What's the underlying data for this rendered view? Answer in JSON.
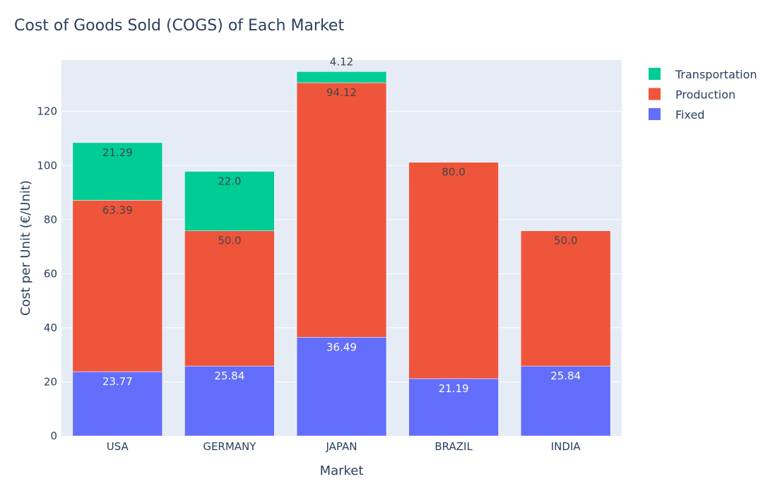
{
  "chart_data": {
    "type": "bar",
    "stacked": true,
    "title": "Cost of Goods Sold (COGS) of Each Market",
    "xlabel": "Market",
    "ylabel": "Cost per Unit (€/Unit)",
    "categories": [
      "USA",
      "GERMANY",
      "JAPAN",
      "BRAZIL",
      "INDIA"
    ],
    "ylim": [
      0,
      139
    ],
    "yticks": [
      0,
      20,
      40,
      60,
      80,
      100,
      120
    ],
    "grid": true,
    "legend_position": "top-right",
    "series": [
      {
        "name": "Fixed",
        "color": "#636efa",
        "label_color": "#ffffff",
        "values": [
          23.77,
          25.84,
          36.49,
          21.19,
          25.84
        ],
        "labels": [
          "23.77",
          "25.84",
          "36.49",
          "21.19",
          "25.84"
        ]
      },
      {
        "name": "Production",
        "color": "#ef553b",
        "label_color": "#444444",
        "values": [
          63.39,
          50.0,
          94.12,
          80.0,
          50.0
        ],
        "labels": [
          "63.39",
          "50.0",
          "94.12",
          "80.0",
          "50.0"
        ]
      },
      {
        "name": "Transportation",
        "color": "#00cc96",
        "label_color": "#444444",
        "values": [
          21.29,
          22.0,
          4.12,
          0,
          0
        ],
        "labels": [
          "21.29",
          "22.0",
          "4.12",
          "",
          ""
        ]
      }
    ],
    "legend_order": [
      "Transportation",
      "Production",
      "Fixed"
    ]
  }
}
